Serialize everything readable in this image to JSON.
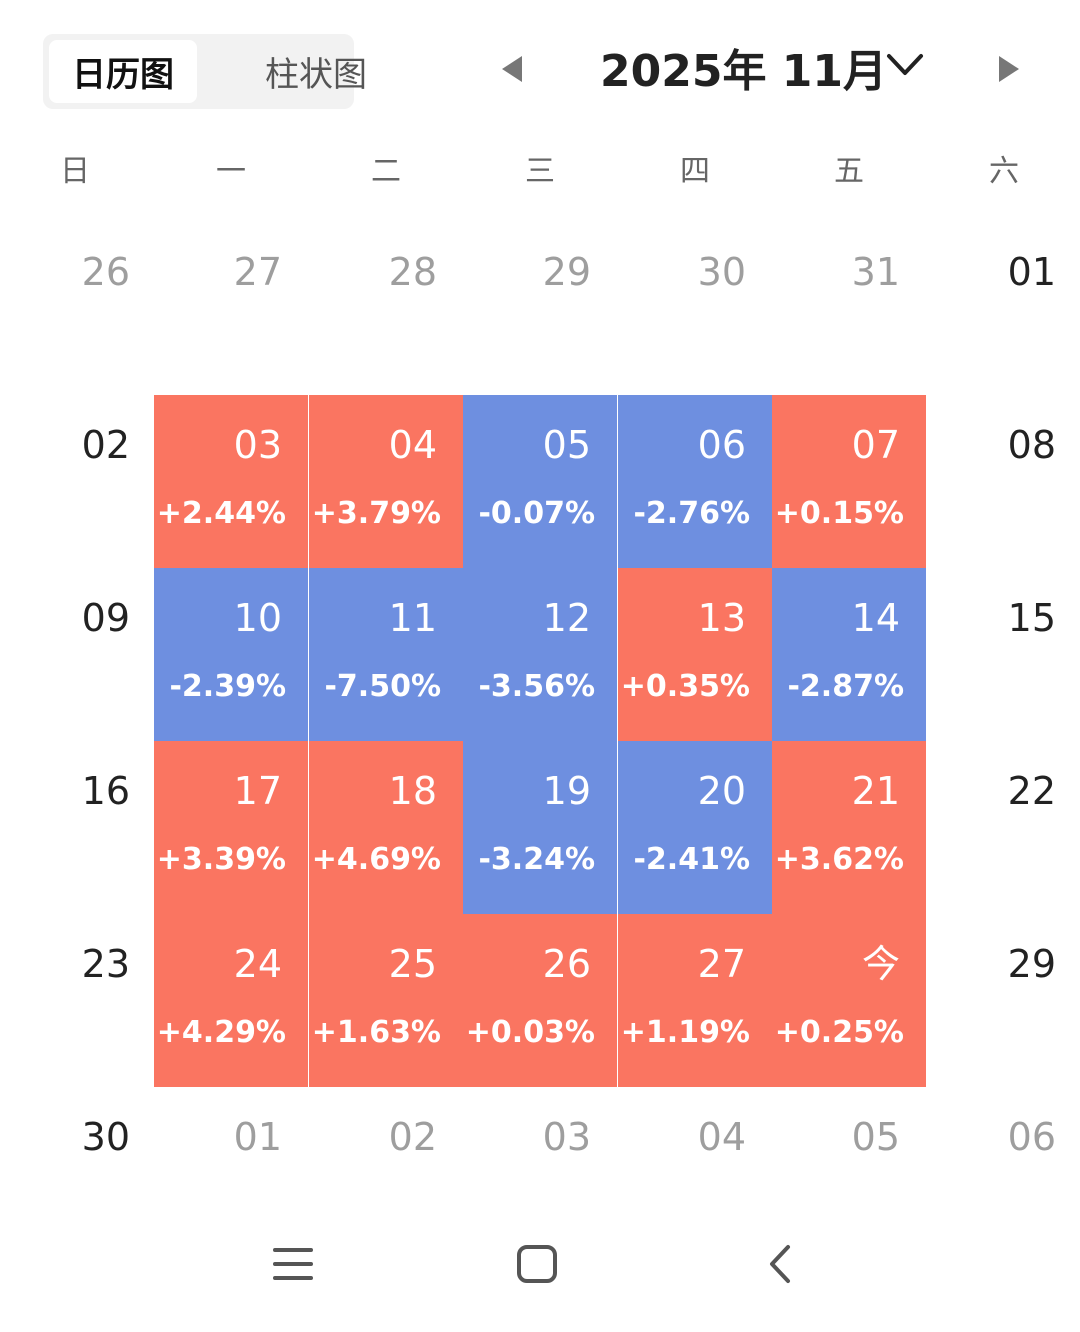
{
  "tabs": [
    {
      "label": "日历图",
      "active": true
    },
    {
      "label": "柱状图",
      "active": false
    }
  ],
  "header": {
    "month_label": "2025年 11月",
    "prev_icon": "triangle-left-icon",
    "next_icon": "triangle-right-icon",
    "dropdown_icon": "chevron-down-icon"
  },
  "weekdays": [
    "日",
    "一",
    "二",
    "三",
    "四",
    "五",
    "六"
  ],
  "colors": {
    "up": "#fa7561",
    "down": "#6e8fe0",
    "muted": "#9e9e9e"
  },
  "weeks": [
    {
      "days": [
        {
          "label": "26",
          "pct": "",
          "state": "muted"
        },
        {
          "label": "27",
          "pct": "",
          "state": "muted"
        },
        {
          "label": "28",
          "pct": "",
          "state": "muted"
        },
        {
          "label": "29",
          "pct": "",
          "state": "muted"
        },
        {
          "label": "30",
          "pct": "",
          "state": "muted"
        },
        {
          "label": "31",
          "pct": "",
          "state": "muted"
        },
        {
          "label": "01",
          "pct": "",
          "state": "plain"
        }
      ]
    },
    {
      "days": [
        {
          "label": "02",
          "pct": "",
          "state": "plain"
        },
        {
          "label": "03",
          "pct": "+2.44%",
          "state": "up"
        },
        {
          "label": "04",
          "pct": "+3.79%",
          "state": "up"
        },
        {
          "label": "05",
          "pct": "-0.07%",
          "state": "down"
        },
        {
          "label": "06",
          "pct": "-2.76%",
          "state": "down"
        },
        {
          "label": "07",
          "pct": "+0.15%",
          "state": "up"
        },
        {
          "label": "08",
          "pct": "",
          "state": "plain"
        }
      ]
    },
    {
      "days": [
        {
          "label": "09",
          "pct": "",
          "state": "plain"
        },
        {
          "label": "10",
          "pct": "-2.39%",
          "state": "down"
        },
        {
          "label": "11",
          "pct": "-7.50%",
          "state": "down"
        },
        {
          "label": "12",
          "pct": "-3.56%",
          "state": "down"
        },
        {
          "label": "13",
          "pct": "+0.35%",
          "state": "up"
        },
        {
          "label": "14",
          "pct": "-2.87%",
          "state": "down"
        },
        {
          "label": "15",
          "pct": "",
          "state": "plain"
        }
      ]
    },
    {
      "days": [
        {
          "label": "16",
          "pct": "",
          "state": "plain"
        },
        {
          "label": "17",
          "pct": "+3.39%",
          "state": "up"
        },
        {
          "label": "18",
          "pct": "+4.69%",
          "state": "up"
        },
        {
          "label": "19",
          "pct": "-3.24%",
          "state": "down"
        },
        {
          "label": "20",
          "pct": "-2.41%",
          "state": "down"
        },
        {
          "label": "21",
          "pct": "+3.62%",
          "state": "up"
        },
        {
          "label": "22",
          "pct": "",
          "state": "plain"
        }
      ]
    },
    {
      "days": [
        {
          "label": "23",
          "pct": "",
          "state": "plain"
        },
        {
          "label": "24",
          "pct": "+4.29%",
          "state": "up"
        },
        {
          "label": "25",
          "pct": "+1.63%",
          "state": "up"
        },
        {
          "label": "26",
          "pct": "+0.03%",
          "state": "up"
        },
        {
          "label": "27",
          "pct": "+1.19%",
          "state": "up"
        },
        {
          "label": "今",
          "pct": "+0.25%",
          "state": "up"
        },
        {
          "label": "29",
          "pct": "",
          "state": "plain"
        }
      ]
    },
    {
      "days": [
        {
          "label": "30",
          "pct": "",
          "state": "plain"
        },
        {
          "label": "01",
          "pct": "",
          "state": "muted"
        },
        {
          "label": "02",
          "pct": "",
          "state": "muted"
        },
        {
          "label": "03",
          "pct": "",
          "state": "muted"
        },
        {
          "label": "04",
          "pct": "",
          "state": "muted"
        },
        {
          "label": "05",
          "pct": "",
          "state": "muted"
        },
        {
          "label": "06",
          "pct": "",
          "state": "muted"
        }
      ]
    }
  ],
  "navbar": {
    "icons": [
      "menu-icon",
      "home-icon",
      "back-icon"
    ]
  }
}
